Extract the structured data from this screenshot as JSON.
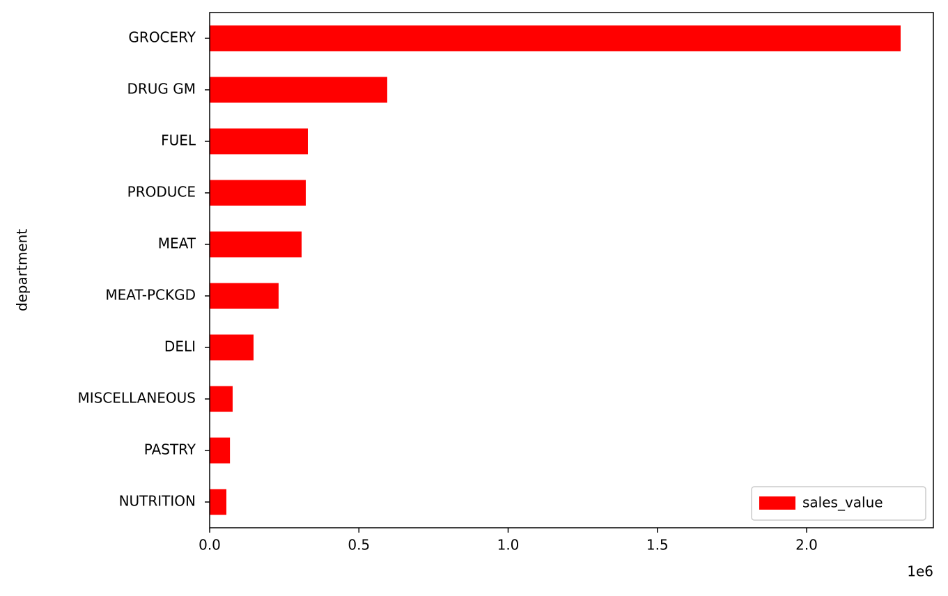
{
  "chart_data": {
    "type": "barh",
    "y_label": "department",
    "categories": [
      "GROCERY",
      "DRUG GM",
      "FUEL",
      "PRODUCE",
      "MEAT",
      "MEAT-PCKGD",
      "DELI",
      "MISCELLANEOUS",
      "PASTRY",
      "NUTRITION"
    ],
    "series": [
      {
        "name": "sales_value",
        "color": "#ff0000",
        "values": [
          2315000,
          595000,
          329000,
          322000,
          308000,
          231000,
          147000,
          77000,
          68000,
          56000
        ]
      }
    ],
    "xlim": [
      0,
      2424700
    ],
    "xticks": [
      {
        "value": 0,
        "label": "0.0"
      },
      {
        "value": 500000,
        "label": "0.5"
      },
      {
        "value": 1000000,
        "label": "1.0"
      },
      {
        "value": 1500000,
        "label": "1.5"
      },
      {
        "value": 2000000,
        "label": "2.0"
      }
    ],
    "x_offset_label": "1e6",
    "legend": "lower right",
    "grid": false
  }
}
